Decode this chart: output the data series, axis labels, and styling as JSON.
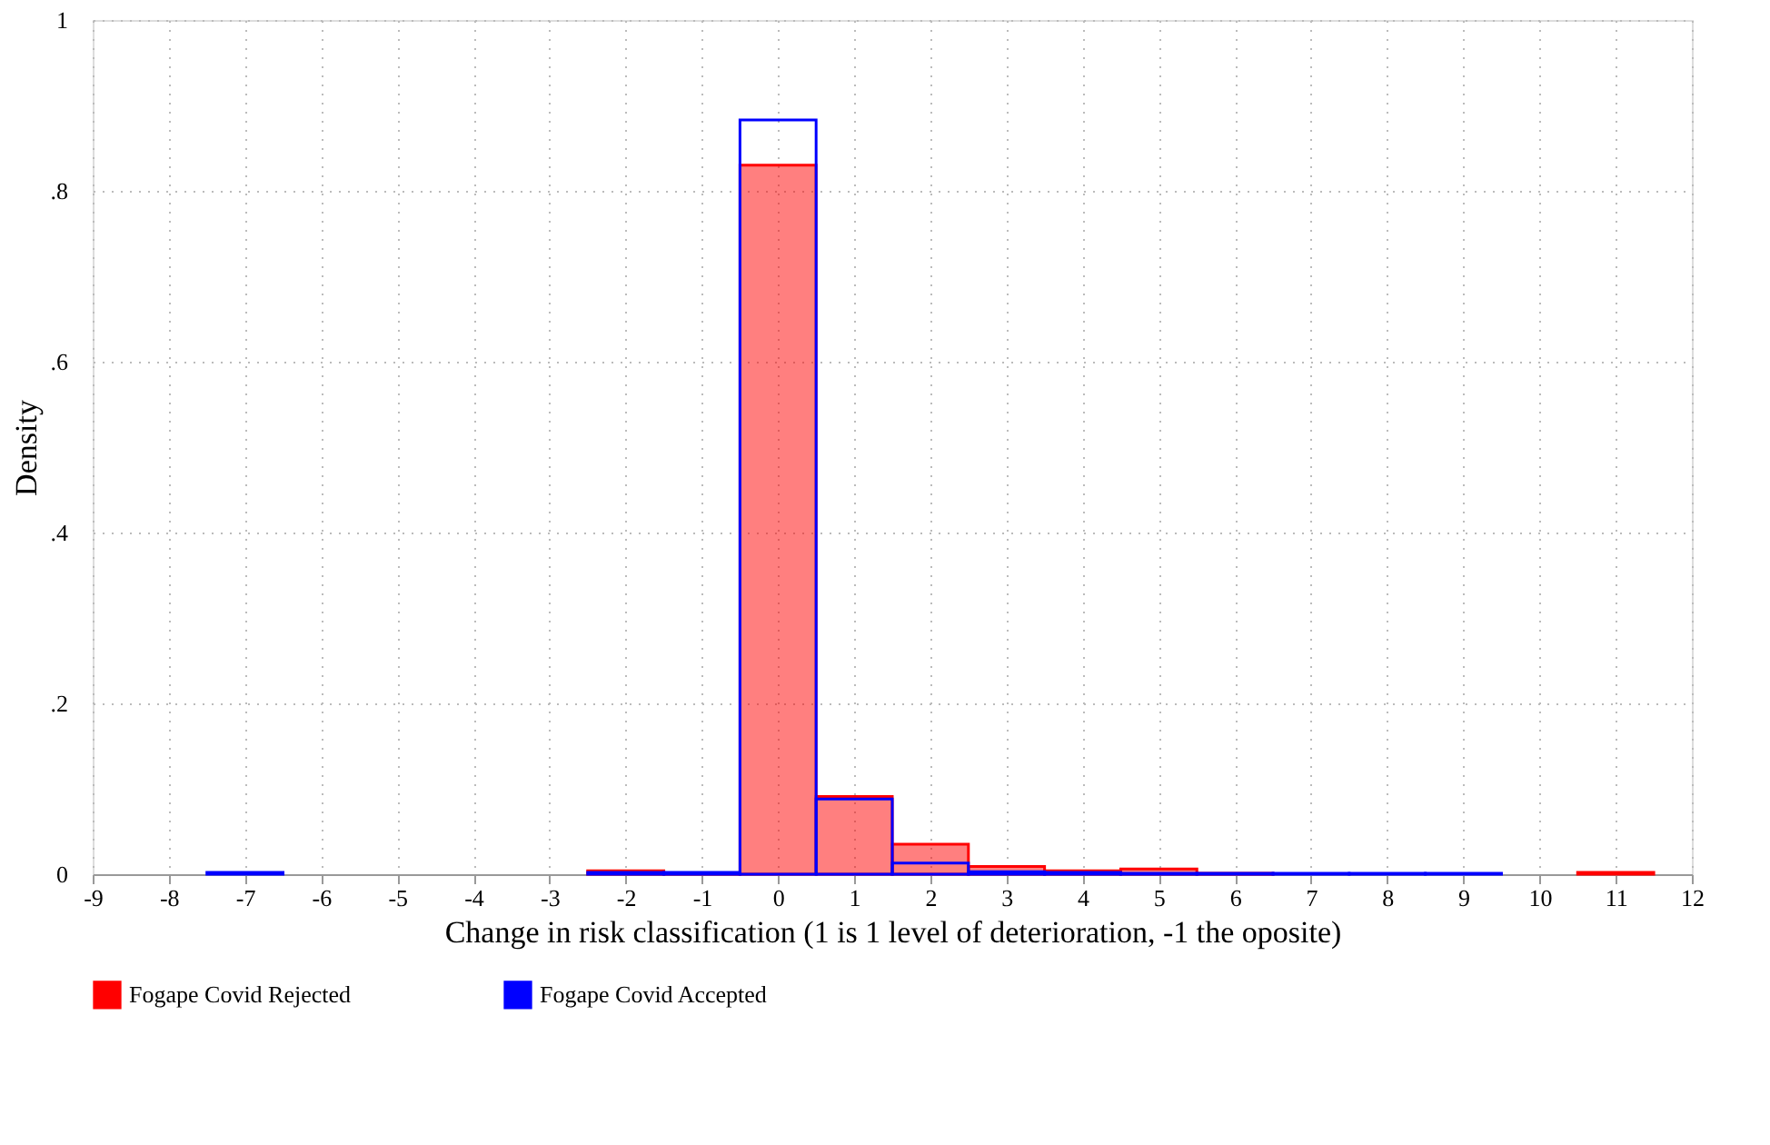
{
  "chart_data": {
    "type": "histogram",
    "xlabel": "Change in risk classification (1 is 1 level of deterioration, -1 the oposite)",
    "ylabel": "Density",
    "bins": [
      -7.5,
      -6.5,
      -5.5,
      -4.5,
      -3.5,
      -2.5,
      -1.5,
      -0.5,
      0.5,
      1.5,
      2.5,
      3.5,
      4.5,
      5.5,
      6.5,
      7.5,
      8.5,
      9.5,
      10.5,
      11.5
    ],
    "series": [
      {
        "name": "Fogape Covid Rejected",
        "color": "#ff0000",
        "values": [
          null,
          null,
          null,
          null,
          null,
          0.004,
          0.001,
          0.83,
          0.091,
          0.035,
          0.009,
          0.004,
          0.006,
          0.001,
          null,
          null,
          null,
          null,
          0.002
        ]
      },
      {
        "name": "Fogape Covid Accepted",
        "color": "#0000ff",
        "values": [
          0.002,
          null,
          null,
          null,
          null,
          0.002,
          0.002,
          0.883,
          0.088,
          0.013,
          0.003,
          0.002,
          0.001,
          0.001,
          0.001,
          0.001,
          0.001,
          null,
          null
        ]
      }
    ],
    "xlim": [
      -9,
      12
    ],
    "xticks": [
      -9,
      -8,
      -7,
      -6,
      -5,
      -4,
      -3,
      -2,
      -1,
      0,
      1,
      2,
      3,
      4,
      5,
      6,
      7,
      8,
      9,
      10,
      11,
      12
    ],
    "ylim": [
      0,
      1
    ],
    "yticks": [
      0,
      {
        "value": 0.2,
        "label": ".2"
      },
      {
        "value": 0.4,
        "label": ".4"
      },
      {
        "value": 0.6,
        "label": ".6"
      },
      {
        "value": 0.8,
        "label": ".8"
      },
      1
    ],
    "grid": true,
    "legend": "bottom"
  }
}
